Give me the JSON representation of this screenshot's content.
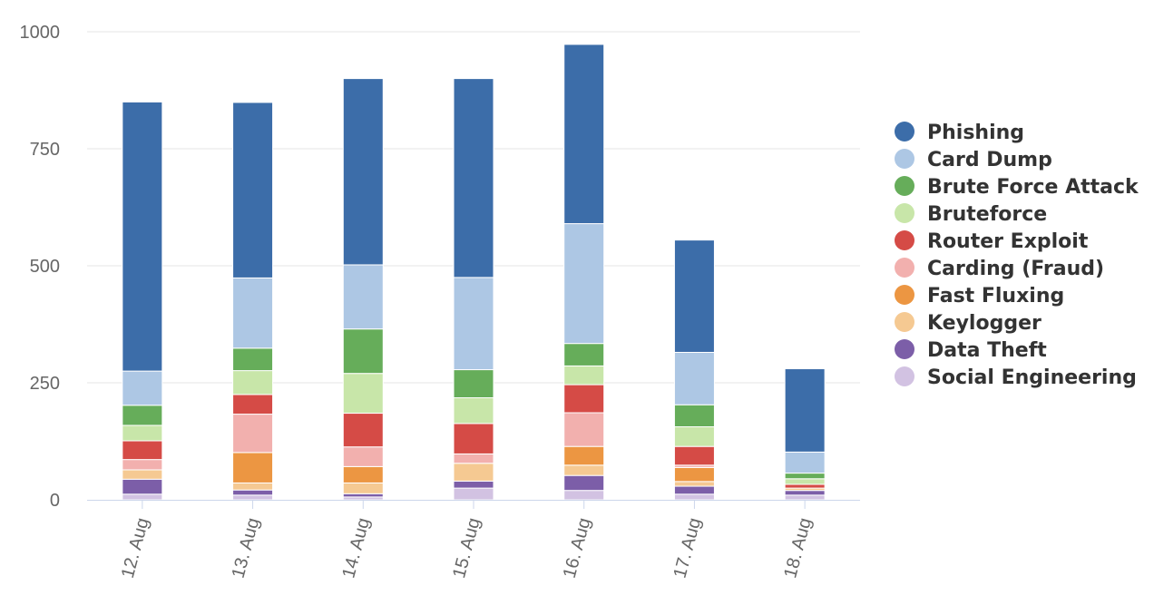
{
  "chart_data": {
    "type": "bar",
    "stacked": true,
    "categories": [
      "12. Aug",
      "13. Aug",
      "14. Aug",
      "15. Aug",
      "16. Aug",
      "17. Aug",
      "18. Aug"
    ],
    "ylim": [
      0,
      1000
    ],
    "yticks": [
      0,
      250,
      500,
      750,
      1000
    ],
    "ytick_labels": [
      "0",
      "250",
      "500",
      "750",
      "1000"
    ],
    "grid": true,
    "legend_position": "right",
    "series": [
      {
        "name": "Social Engineering",
        "color": "#d2c2e2",
        "values": [
          12,
          10,
          6,
          25,
          20,
          12,
          10
        ]
      },
      {
        "name": "Data Theft",
        "color": "#7c5ea8",
        "values": [
          32,
          11,
          7,
          15,
          32,
          17,
          10
        ]
      },
      {
        "name": "Keylogger",
        "color": "#f5c992",
        "values": [
          20,
          15,
          23,
          38,
          22,
          10,
          5
        ]
      },
      {
        "name": "Fast Fluxing",
        "color": "#ec9642",
        "values": [
          0,
          65,
          35,
          0,
          40,
          30,
          0
        ]
      },
      {
        "name": "Carding (Fraud)",
        "color": "#f2b0ae",
        "values": [
          22,
          82,
          42,
          20,
          72,
          5,
          0
        ]
      },
      {
        "name": "Router Exploit",
        "color": "#d54b46",
        "values": [
          40,
          42,
          72,
          65,
          60,
          40,
          8
        ]
      },
      {
        "name": "Bruteforce",
        "color": "#c8e6a9",
        "values": [
          33,
          51,
          85,
          55,
          40,
          42,
          12
        ]
      },
      {
        "name": "Brute Force Attack",
        "color": "#66ad5a",
        "values": [
          43,
          48,
          95,
          60,
          48,
          47,
          12
        ]
      },
      {
        "name": "Card Dump",
        "color": "#adc7e4",
        "values": [
          73,
          150,
          137,
          197,
          256,
          112,
          45
        ]
      },
      {
        "name": "Phishing",
        "color": "#3c6da9",
        "values": [
          575,
          375,
          398,
          425,
          383,
          240,
          178
        ]
      }
    ],
    "legend_order": [
      "Phishing",
      "Card Dump",
      "Brute Force Attack",
      "Bruteforce",
      "Router Exploit",
      "Carding (Fraud)",
      "Fast Fluxing",
      "Keylogger",
      "Data Theft",
      "Social Engineering"
    ]
  }
}
